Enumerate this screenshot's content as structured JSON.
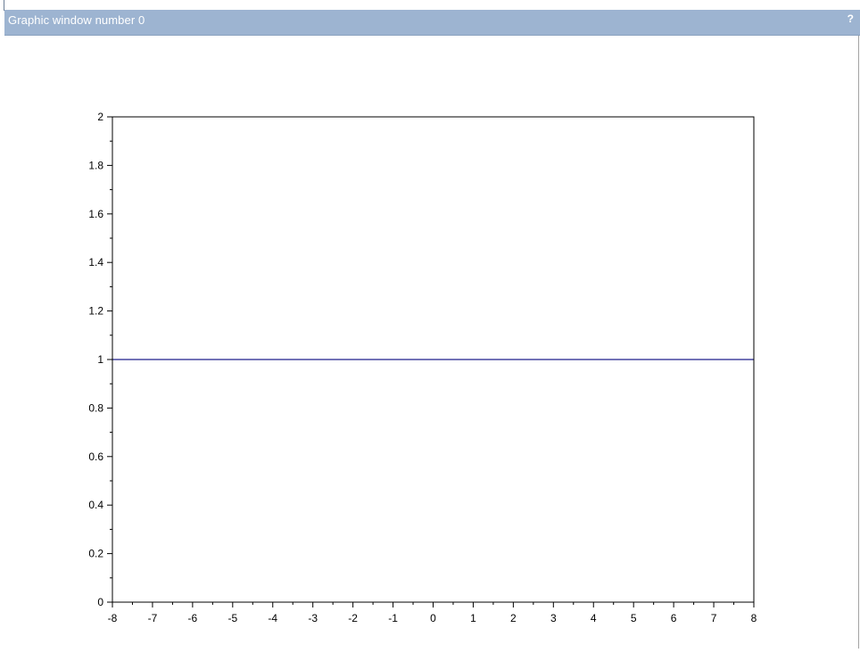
{
  "window": {
    "title": "Graphic window number 0",
    "help_icon": "help-question-icon",
    "help_glyph": "?"
  },
  "colors": {
    "titlebar": "#9db4d1",
    "series_line": "#1f1f8c",
    "axes": "#000000"
  },
  "chart_data": {
    "type": "line",
    "title": "",
    "xlabel": "",
    "ylabel": "",
    "xlim": [
      -8,
      8
    ],
    "ylim": [
      0,
      2
    ],
    "x_ticks": [
      "-8",
      "-7",
      "-6",
      "-5",
      "-4",
      "-3",
      "-2",
      "-1",
      "0",
      "1",
      "2",
      "3",
      "4",
      "5",
      "6",
      "7",
      "8"
    ],
    "y_ticks": [
      "0",
      "0.2",
      "0.4",
      "0.6",
      "0.8",
      "1",
      "1.2",
      "1.4",
      "1.6",
      "1.8",
      "2"
    ],
    "grid": false,
    "series": [
      {
        "x": [
          -8,
          8
        ],
        "y": [
          1,
          1
        ],
        "color": "#1f1f8c"
      }
    ]
  }
}
